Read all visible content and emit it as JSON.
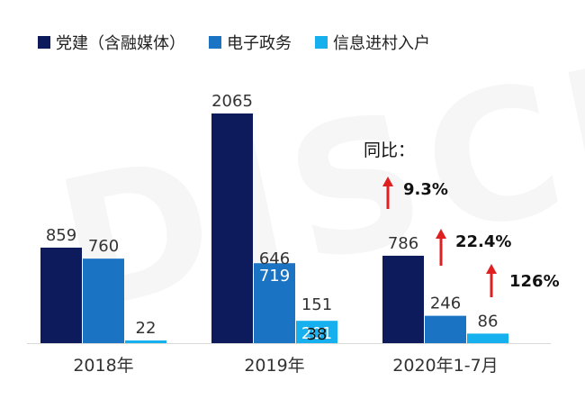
{
  "chart_data": {
    "type": "bar",
    "categories": [
      "2018年",
      "2019年",
      "2020年1-7月"
    ],
    "series": [
      {
        "name": "党建（含融媒体）",
        "color": "#0d1b5c",
        "values": [
          859,
          2065,
          786
        ]
      },
      {
        "name": "电子政务",
        "color": "#1b73c4",
        "values": [
          760,
          719,
          246
        ]
      },
      {
        "name": "信息进村入户",
        "color": "#16b0ee",
        "values": [
          22,
          201,
          86
        ]
      }
    ],
    "extra_labels": {
      "2019年": {
        "电子政务_secondary": 646,
        "信息进村入户_secondary": 151,
        "信息进村入户_inner": 38
      }
    },
    "ylim": [
      0,
      2200
    ],
    "legend_position": "top"
  },
  "yoy": {
    "title": "同比：",
    "values": [
      "9.3%",
      "22.4%",
      "126%"
    ],
    "arrow_color": "#e02020"
  },
  "watermark": "DISCIEN"
}
